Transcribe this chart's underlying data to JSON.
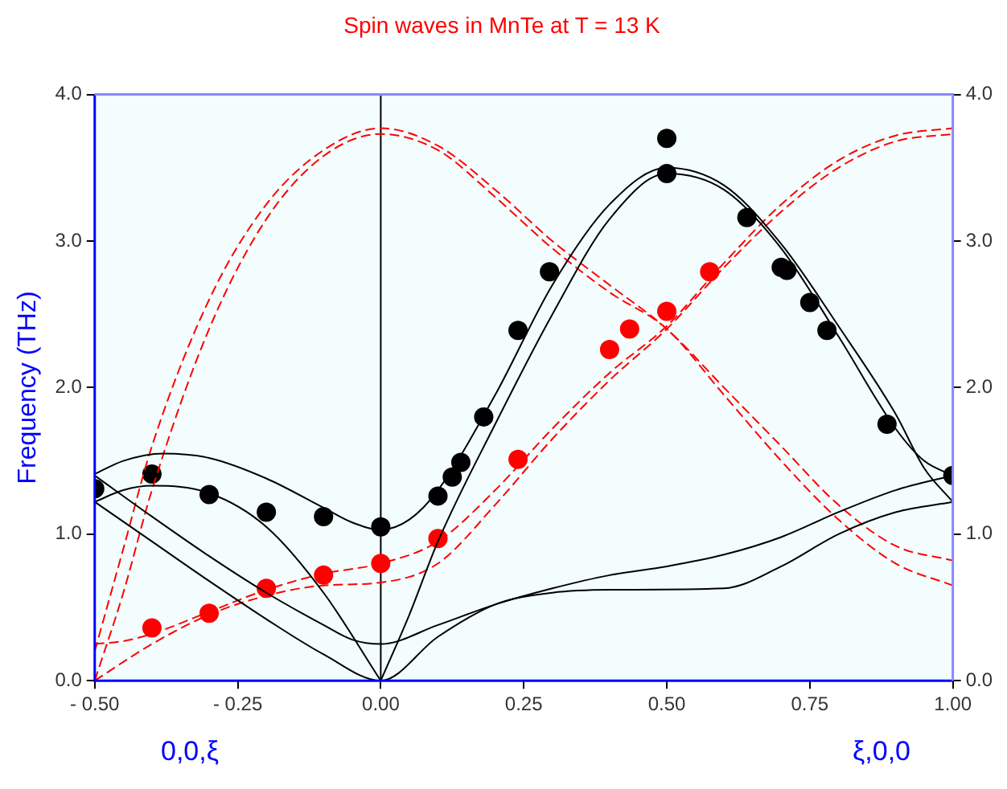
{
  "chart_data": {
    "type": "line",
    "title": "Spin waves in MnTe at T = 13 K",
    "ylabel": "Frequency (THz)",
    "xlim": [
      -0.5,
      1.0
    ],
    "xticks": [
      {
        "value": -0.5,
        "label": "- 0.50"
      },
      {
        "value": -0.25,
        "label": "- 0.25"
      },
      {
        "value": 0,
        "label": "0.00"
      },
      {
        "value": 0.25,
        "label": "0.25"
      },
      {
        "value": 0.5,
        "label": "0.50"
      },
      {
        "value": 0.75,
        "label": "0.75"
      },
      {
        "value": 1.0,
        "label": "1.00"
      }
    ],
    "ylim": [
      0,
      4
    ],
    "yticks": [
      {
        "value": 0,
        "label": "0.0"
      },
      {
        "value": 1,
        "label": "1.0"
      },
      {
        "value": 2,
        "label": "2.0"
      },
      {
        "value": 3,
        "label": "3.0"
      },
      {
        "value": 4,
        "label": "4.0"
      }
    ],
    "y2lim": [
      0,
      4
    ],
    "y2ticks": [
      {
        "value": 0,
        "label": "0.0"
      },
      {
        "value": 1,
        "label": "1.0"
      },
      {
        "value": 2,
        "label": "2.0"
      },
      {
        "value": 3,
        "label": "3.0"
      },
      {
        "value": 4,
        "label": "4.0"
      }
    ],
    "grid": false,
    "legend": false,
    "ref_lines": [
      {
        "axis": "x",
        "value": 0,
        "color": "#000000"
      }
    ],
    "annotations": [
      "0,0,ξ",
      "ξ,0,0"
    ],
    "series": [
      {
        "type": "line",
        "color": "#000000",
        "line_style": "solid",
        "marker": "none",
        "x": [
          -0.5,
          -0.45,
          -0.38,
          -0.3,
          -0.2,
          -0.1,
          -0.05,
          0,
          0.05,
          0.1,
          0.2,
          0.3,
          0.4,
          0.5,
          0.6,
          0.7,
          0.8,
          0.9,
          0.95,
          1.0
        ],
        "values": [
          1.41,
          1.5,
          1.55,
          1.52,
          1.38,
          1.18,
          1.08,
          1.03,
          1.1,
          1.3,
          1.95,
          2.7,
          3.25,
          3.5,
          3.38,
          2.98,
          2.42,
          1.82,
          1.45,
          1.22
        ]
      },
      {
        "type": "line",
        "color": "#000000",
        "line_style": "solid",
        "marker": "none",
        "x": [
          0,
          0.05,
          0.1,
          0.2,
          0.3,
          0.4,
          0.5,
          0.6,
          0.7,
          0.8,
          0.9,
          0.95,
          1.0
        ],
        "values": [
          0,
          0.45,
          0.95,
          1.75,
          2.5,
          3.15,
          3.46,
          3.35,
          2.95,
          2.35,
          1.72,
          1.5,
          1.4
        ]
      },
      {
        "type": "line",
        "color": "#000000",
        "line_style": "solid",
        "marker": "none",
        "x": [
          -0.5,
          -0.45,
          -0.4,
          -0.3,
          -0.2,
          -0.1,
          0
        ],
        "values": [
          1.22,
          1.3,
          1.33,
          1.28,
          1.05,
          0.6,
          0
        ]
      },
      {
        "type": "line",
        "color": "#000000",
        "line_style": "solid",
        "marker": "none",
        "x": [
          -0.5,
          -0.4,
          -0.3,
          -0.2,
          -0.1,
          -0.05,
          0,
          0.1,
          0.2,
          0.3,
          0.4,
          0.5,
          0.6,
          0.7,
          0.8,
          0.9,
          1.0
        ],
        "values": [
          1.4,
          1.12,
          0.85,
          0.6,
          0.38,
          0.28,
          0.25,
          0.38,
          0.52,
          0.63,
          0.72,
          0.78,
          0.86,
          0.98,
          1.15,
          1.3,
          1.4
        ]
      },
      {
        "type": "line",
        "color": "#000000",
        "line_style": "solid",
        "marker": "none",
        "x": [
          -0.5,
          -0.4,
          -0.3,
          -0.2,
          -0.1,
          0,
          0.1,
          0.2,
          0.3,
          0.4,
          0.6,
          0.7,
          0.8,
          0.9,
          1.0
        ],
        "values": [
          1.22,
          0.95,
          0.68,
          0.42,
          0.18,
          0,
          0.3,
          0.52,
          0.6,
          0.62,
          0.63,
          0.78,
          1.0,
          1.15,
          1.22
        ]
      },
      {
        "type": "line",
        "color": "#ff0000",
        "line_style": "dashed",
        "marker": "none",
        "x": [
          -0.5,
          -0.45,
          -0.4,
          -0.3,
          -0.2,
          -0.1,
          0,
          0.1,
          0.2,
          0.3,
          0.4,
          0.5,
          0.6,
          0.7,
          0.8,
          0.9,
          1.0
        ],
        "values": [
          0.2,
          0.9,
          1.6,
          2.6,
          3.25,
          3.62,
          3.77,
          3.65,
          3.35,
          3.0,
          2.7,
          2.4,
          2.0,
          1.6,
          1.2,
          0.92,
          0.82
        ]
      },
      {
        "type": "line",
        "color": "#ff0000",
        "line_style": "dashed",
        "marker": "none",
        "x": [
          -0.5,
          -0.45,
          -0.4,
          -0.3,
          -0.2,
          -0.1,
          0,
          0.1,
          0.2,
          0.3,
          0.4,
          0.5,
          0.6,
          0.7,
          0.8,
          0.9,
          1.0
        ],
        "values": [
          0,
          0.6,
          1.3,
          2.4,
          3.15,
          3.58,
          3.73,
          3.62,
          3.3,
          2.95,
          2.65,
          2.4,
          1.95,
          1.5,
          1.1,
          0.8,
          0.65
        ]
      },
      {
        "type": "line",
        "color": "#ff0000",
        "line_style": "dashed",
        "marker": "none",
        "x": [
          -0.5,
          -0.45,
          -0.4,
          -0.3,
          -0.2,
          -0.1,
          0,
          0.1,
          0.2,
          0.3,
          0.4,
          0.5,
          0.6,
          0.7,
          0.8,
          0.9,
          1.0
        ],
        "values": [
          0.25,
          0.27,
          0.32,
          0.47,
          0.62,
          0.73,
          0.8,
          0.95,
          1.3,
          1.72,
          2.1,
          2.42,
          2.85,
          3.25,
          3.55,
          3.72,
          3.77
        ]
      },
      {
        "type": "line",
        "color": "#ff0000",
        "line_style": "dashed",
        "marker": "none",
        "x": [
          -0.5,
          -0.4,
          -0.3,
          -0.2,
          -0.1,
          0,
          0.1,
          0.2,
          0.3,
          0.4,
          0.5,
          0.6,
          0.7,
          0.8,
          0.9,
          1.0
        ],
        "values": [
          0,
          0.25,
          0.45,
          0.58,
          0.65,
          0.67,
          0.8,
          1.2,
          1.65,
          2.05,
          2.4,
          2.82,
          3.2,
          3.5,
          3.68,
          3.73
        ]
      },
      {
        "type": "scatter",
        "color": "#000000",
        "marker": "circle",
        "x": [
          -0.5,
          -0.4,
          -0.3,
          -0.2,
          -0.1,
          0,
          0.1,
          0.125,
          0.14,
          0.18,
          0.24,
          0.295,
          0.5,
          0.5,
          0.64,
          0.7,
          0.71,
          0.75,
          0.78,
          0.885,
          1.0
        ],
        "values": [
          1.31,
          1.41,
          1.27,
          1.15,
          1.12,
          1.05,
          1.26,
          1.39,
          1.49,
          1.8,
          2.39,
          2.79,
          3.7,
          3.46,
          3.16,
          2.82,
          2.8,
          2.58,
          2.39,
          1.75,
          1.4
        ]
      },
      {
        "type": "scatter",
        "color": "#ff0000",
        "marker": "circle",
        "x": [
          -0.4,
          -0.3,
          -0.2,
          -0.1,
          0,
          0.1,
          0.24,
          0.4,
          0.435,
          0.5,
          0.575
        ],
        "values": [
          0.36,
          0.46,
          0.63,
          0.72,
          0.8,
          0.97,
          1.51,
          2.26,
          2.4,
          2.52,
          2.79
        ]
      }
    ]
  }
}
